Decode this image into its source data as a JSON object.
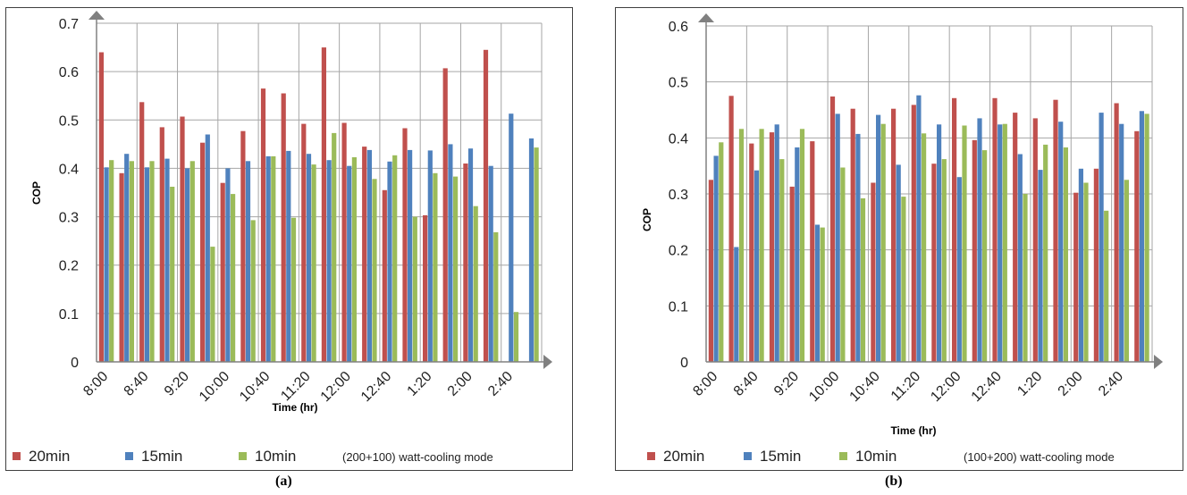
{
  "colors": {
    "s20": "#C0504D",
    "s15": "#4F81BD",
    "s10": "#9BBB59",
    "grid": "#A6A6A6",
    "axis": "#808080"
  },
  "chart_data": [
    {
      "type": "bar",
      "panel_label": "(a)",
      "xlabel": "Time (hr)",
      "ylabel": "COP",
      "note": "(200+100) watt-cooling mode",
      "ylim": [
        0,
        0.7
      ],
      "yticks": [
        "0",
        "0.1",
        "0.2",
        "0.3",
        "0.4",
        "0.5",
        "0.6",
        "0.7"
      ],
      "xtick_labels": [
        "8:00",
        "8:40",
        "9:20",
        "10:00",
        "10:40",
        "11:20",
        "12:00",
        "12:40",
        "1:20",
        "2:00",
        "2:40"
      ],
      "grid": true,
      "legend_position": "bottom",
      "series": [
        {
          "name": "20min",
          "values": [
            0.64,
            0.39,
            0.537,
            0.485,
            0.507,
            0.453,
            0.37,
            0.477,
            0.565,
            0.555,
            0.492,
            0.65,
            0.494,
            0.445,
            0.355,
            0.483,
            0.303,
            0.607,
            0.41,
            0.645,
            null
          ]
        },
        {
          "name": "15min",
          "values": [
            0.402,
            0.43,
            0.402,
            0.42,
            0.4,
            0.47,
            0.4,
            0.415,
            0.425,
            0.436,
            0.43,
            0.417,
            0.405,
            0.438,
            0.414,
            0.438,
            0.437,
            0.45,
            0.441,
            0.405,
            0.513,
            0.462
          ]
        },
        {
          "name": "10min",
          "values": [
            0.417,
            0.415,
            0.415,
            0.362,
            0.415,
            0.238,
            0.347,
            0.293,
            0.425,
            0.298,
            0.408,
            0.473,
            0.423,
            0.378,
            0.427,
            0.3,
            0.39,
            0.383,
            0.322,
            0.268,
            0.103,
            0.443
          ]
        }
      ]
    },
    {
      "type": "bar",
      "panel_label": "(b)",
      "xlabel": "Time (hr)",
      "ylabel": "COP",
      "note": "(100+200) watt-cooling mode",
      "ylim": [
        0,
        0.6
      ],
      "yticks": [
        "0",
        "0.1",
        "0.2",
        "0.3",
        "0.4",
        "0.5",
        "0.6"
      ],
      "xtick_labels": [
        "8:00",
        "8:40",
        "9:20",
        "10:00",
        "10:40",
        "11:20",
        "12:00",
        "12:40",
        "1:20",
        "2:00",
        "2:40"
      ],
      "grid": true,
      "legend_position": "bottom",
      "series": [
        {
          "name": "20min",
          "values": [
            0.325,
            0.475,
            0.39,
            0.41,
            0.313,
            0.394,
            0.474,
            0.452,
            0.32,
            0.452,
            0.459,
            0.354,
            0.471,
            0.396,
            0.471,
            0.445,
            0.435,
            0.468,
            0.302,
            0.345,
            0.462,
            0.412
          ]
        },
        {
          "name": "15min",
          "values": [
            0.368,
            0.205,
            0.342,
            0.424,
            0.383,
            0.245,
            0.443,
            0.407,
            0.441,
            0.352,
            0.476,
            0.424,
            0.33,
            0.435,
            0.424,
            0.371,
            0.343,
            0.429,
            0.345,
            0.445,
            0.425,
            0.448
          ]
        },
        {
          "name": "10min",
          "values": [
            0.392,
            0.416,
            0.416,
            0.362,
            0.416,
            0.24,
            0.347,
            0.292,
            0.425,
            0.295,
            0.408,
            0.362,
            0.422,
            0.378,
            0.425,
            0.3,
            0.388,
            0.383,
            0.32,
            0.27,
            0.325,
            0.443
          ]
        }
      ]
    }
  ]
}
